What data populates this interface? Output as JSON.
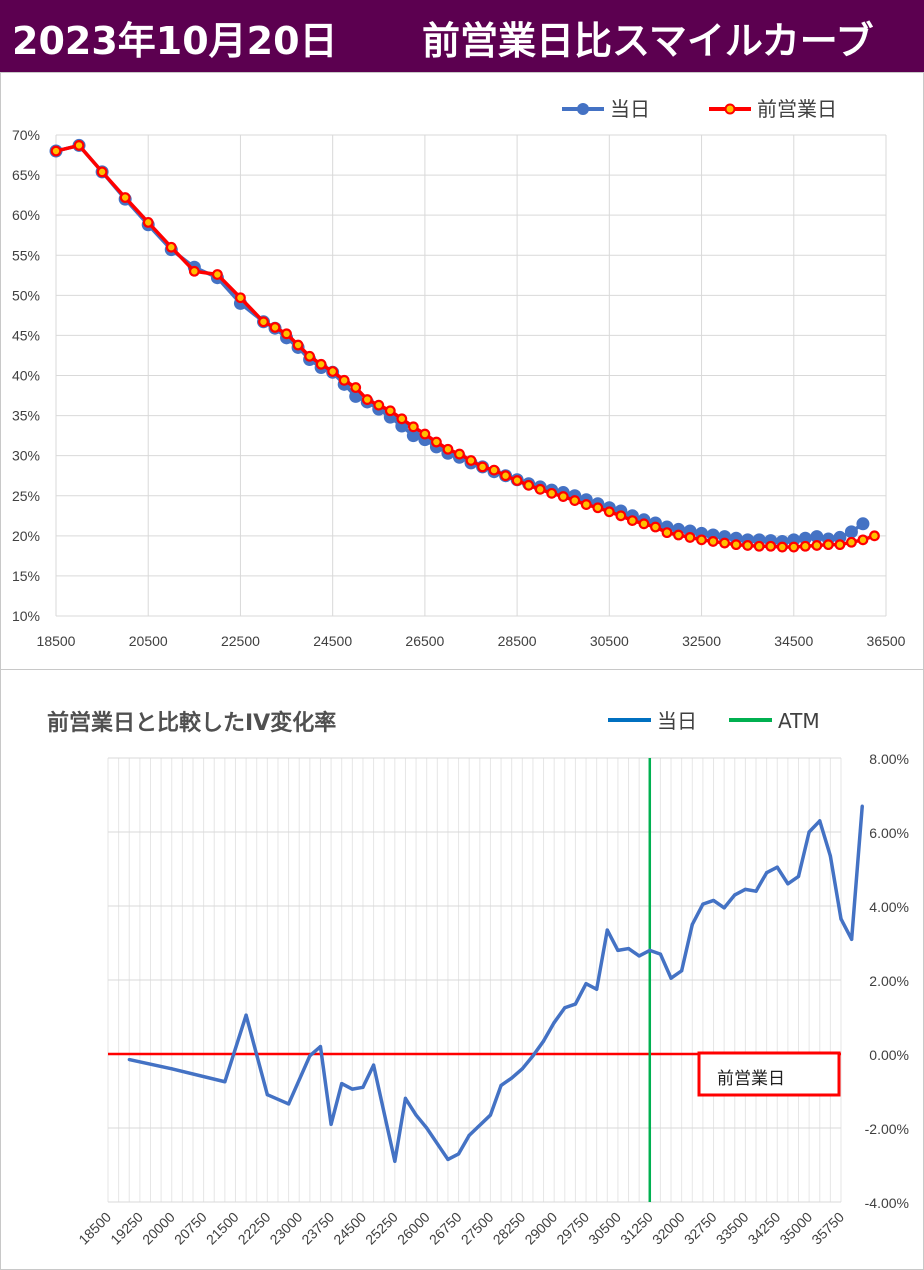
{
  "header": {
    "date": "2023年10月20日",
    "title": "前営業日比スマイルカーブ"
  },
  "colors": {
    "header_bg": "#5c0050",
    "today": "#4472c4",
    "prev": "#ff0000",
    "atm": "#00b050"
  },
  "chart_data": [
    {
      "type": "line",
      "legend": [
        "当日",
        "前営業日"
      ],
      "legend_position": "top-right",
      "x_ticks": [
        18500,
        20500,
        22500,
        24500,
        26500,
        28500,
        30500,
        32500,
        34500,
        36500
      ],
      "y_ticks": [
        "10%",
        "15%",
        "20%",
        "25%",
        "30%",
        "35%",
        "40%",
        "45%",
        "50%",
        "55%",
        "60%",
        "65%",
        "70%"
      ],
      "xlim": [
        18500,
        36500
      ],
      "ylim": [
        0.1,
        0.7
      ],
      "grid": true,
      "series": [
        {
          "name": "当日",
          "points": [
            [
              18500,
              0.68
            ],
            [
              19000,
              0.687
            ],
            [
              19500,
              0.654
            ],
            [
              20000,
              0.62
            ],
            [
              20500,
              0.588
            ],
            [
              21000,
              0.557
            ],
            [
              21500,
              0.535
            ],
            [
              22000,
              0.522
            ],
            [
              22500,
              0.49
            ],
            [
              23000,
              0.467
            ],
            [
              23250,
              0.459
            ],
            [
              23500,
              0.447
            ],
            [
              23750,
              0.435
            ],
            [
              24000,
              0.42
            ],
            [
              24250,
              0.41
            ],
            [
              24500,
              0.404
            ],
            [
              24750,
              0.389
            ],
            [
              25000,
              0.374
            ],
            [
              25250,
              0.367
            ],
            [
              25500,
              0.358
            ],
            [
              25750,
              0.348
            ],
            [
              26000,
              0.337
            ],
            [
              26250,
              0.325
            ],
            [
              26500,
              0.32
            ],
            [
              26750,
              0.311
            ],
            [
              27000,
              0.303
            ],
            [
              27250,
              0.298
            ],
            [
              27500,
              0.291
            ],
            [
              27750,
              0.286
            ],
            [
              28000,
              0.28
            ],
            [
              28250,
              0.275
            ],
            [
              28500,
              0.27
            ],
            [
              28750,
              0.265
            ],
            [
              29000,
              0.261
            ],
            [
              29250,
              0.257
            ],
            [
              29500,
              0.254
            ],
            [
              29750,
              0.25
            ],
            [
              30000,
              0.245
            ],
            [
              30250,
              0.24
            ],
            [
              30500,
              0.235
            ],
            [
              30750,
              0.231
            ],
            [
              31000,
              0.225
            ],
            [
              31250,
              0.22
            ],
            [
              31500,
              0.216
            ],
            [
              31750,
              0.211
            ],
            [
              32000,
              0.208
            ],
            [
              32250,
              0.206
            ],
            [
              32500,
              0.203
            ],
            [
              32750,
              0.201
            ],
            [
              33000,
              0.199
            ],
            [
              33250,
              0.197
            ],
            [
              33500,
              0.195
            ],
            [
              33750,
              0.195
            ],
            [
              34000,
              0.194
            ],
            [
              34250,
              0.193
            ],
            [
              34500,
              0.195
            ],
            [
              34750,
              0.197
            ],
            [
              35000,
              0.199
            ],
            [
              35250,
              0.196
            ],
            [
              35500,
              0.198
            ],
            [
              35750,
              0.205
            ],
            [
              36000,
              0.215
            ]
          ]
        },
        {
          "name": "前営業日",
          "points": [
            [
              18500,
              0.68
            ],
            [
              19000,
              0.687
            ],
            [
              19500,
              0.654
            ],
            [
              20000,
              0.622
            ],
            [
              20500,
              0.591
            ],
            [
              21000,
              0.56
            ],
            [
              21500,
              0.53
            ],
            [
              22000,
              0.526
            ],
            [
              22500,
              0.497
            ],
            [
              23000,
              0.467
            ],
            [
              23250,
              0.46
            ],
            [
              23500,
              0.452
            ],
            [
              23750,
              0.438
            ],
            [
              24000,
              0.424
            ],
            [
              24250,
              0.414
            ],
            [
              24500,
              0.405
            ],
            [
              24750,
              0.394
            ],
            [
              25000,
              0.385
            ],
            [
              25250,
              0.37
            ],
            [
              25500,
              0.363
            ],
            [
              25750,
              0.356
            ],
            [
              26000,
              0.346
            ],
            [
              26250,
              0.336
            ],
            [
              26500,
              0.327
            ],
            [
              26750,
              0.317
            ],
            [
              27000,
              0.308
            ],
            [
              27250,
              0.302
            ],
            [
              27500,
              0.294
            ],
            [
              27750,
              0.286
            ],
            [
              28000,
              0.282
            ],
            [
              28250,
              0.275
            ],
            [
              28500,
              0.269
            ],
            [
              28750,
              0.263
            ],
            [
              29000,
              0.258
            ],
            [
              29250,
              0.253
            ],
            [
              29500,
              0.249
            ],
            [
              29750,
              0.244
            ],
            [
              30000,
              0.239
            ],
            [
              30250,
              0.235
            ],
            [
              30500,
              0.23
            ],
            [
              30750,
              0.225
            ],
            [
              31000,
              0.219
            ],
            [
              31250,
              0.215
            ],
            [
              31500,
              0.211
            ],
            [
              31750,
              0.204
            ],
            [
              32000,
              0.201
            ],
            [
              32250,
              0.198
            ],
            [
              32500,
              0.195
            ],
            [
              32750,
              0.193
            ],
            [
              33000,
              0.191
            ],
            [
              33250,
              0.189
            ],
            [
              33500,
              0.188
            ],
            [
              33750,
              0.187
            ],
            [
              34000,
              0.187
            ],
            [
              34250,
              0.186
            ],
            [
              34500,
              0.186
            ],
            [
              34750,
              0.187
            ],
            [
              35000,
              0.188
            ],
            [
              35250,
              0.189
            ],
            [
              35500,
              0.189
            ],
            [
              35750,
              0.192
            ],
            [
              36000,
              0.195
            ],
            [
              36250,
              0.2
            ]
          ]
        }
      ]
    },
    {
      "type": "line",
      "title": "前営業日と比較したIV変化率",
      "legend": [
        "当日",
        "ATM"
      ],
      "legend_position": "top-right",
      "categories": [
        "18500",
        "18750",
        "19000",
        "19250",
        "19500",
        "19750",
        "20000",
        "20250",
        "20500",
        "20750",
        "21000",
        "21250",
        "21500",
        "21750",
        "22000",
        "22250",
        "22500",
        "22750",
        "23000",
        "23250",
        "23500",
        "23750",
        "24000",
        "24250",
        "24500",
        "24750",
        "25000",
        "25250",
        "25500",
        "25750",
        "26000",
        "26250",
        "26500",
        "26750",
        "27000",
        "27250",
        "27500",
        "27750",
        "28000",
        "28250",
        "28500",
        "28750",
        "29000",
        "29250",
        "29500",
        "29750",
        "30000",
        "30250",
        "30500",
        "30750",
        "31000",
        "31250",
        "31500",
        "31750",
        "32000",
        "32250",
        "32500",
        "32750",
        "33000",
        "33250",
        "33500",
        "33750",
        "34000",
        "34250",
        "34500",
        "34750",
        "35000",
        "35250",
        "35500",
        "35750"
      ],
      "tick_labels": [
        "18500",
        "19250",
        "20000",
        "20750",
        "21500",
        "22250",
        "23000",
        "23750",
        "24500",
        "25250",
        "26000",
        "26750",
        "27500",
        "28250",
        "29000",
        "29750",
        "30500",
        "31250",
        "32000",
        "32750",
        "33500",
        "34250",
        "35000",
        "35750"
      ],
      "y_ticks": [
        "-4.00%",
        "-2.00%",
        "0.00%",
        "2.00%",
        "4.00%",
        "6.00%",
        "8.00%"
      ],
      "ylim": [
        -0.04,
        0.08
      ],
      "reference_line": {
        "value": 0,
        "label": "前営業日"
      },
      "atm_strike": 31250,
      "series": [
        {
          "name": "当日",
          "points": [
            [
              19000,
              -0.0015
            ],
            [
              20000,
              -0.004
            ],
            [
              21250,
              -0.0075
            ],
            [
              21750,
              0.0105
            ],
            [
              22250,
              -0.011
            ],
            [
              22750,
              -0.0135
            ],
            [
              23250,
              -0.0005
            ],
            [
              23500,
              0.002
            ],
            [
              23750,
              -0.019
            ],
            [
              24000,
              -0.008
            ],
            [
              24250,
              -0.0095
            ],
            [
              24500,
              -0.009
            ],
            [
              24750,
              -0.003
            ],
            [
              25250,
              -0.029
            ],
            [
              25500,
              -0.012
            ],
            [
              25750,
              -0.0165
            ],
            [
              26000,
              -0.02
            ],
            [
              26500,
              -0.0285
            ],
            [
              26750,
              -0.027
            ],
            [
              27000,
              -0.022
            ],
            [
              27500,
              -0.0165
            ],
            [
              27750,
              -0.0085
            ],
            [
              28000,
              -0.0065
            ],
            [
              28250,
              -0.004
            ],
            [
              28500,
              -0.0005
            ],
            [
              28750,
              0.0035
            ],
            [
              29000,
              0.0085
            ],
            [
              29250,
              0.0125
            ],
            [
              29500,
              0.0135
            ],
            [
              29750,
              0.019
            ],
            [
              30000,
              0.0175
            ],
            [
              30250,
              0.0335
            ],
            [
              30500,
              0.028
            ],
            [
              30750,
              0.0285
            ],
            [
              31000,
              0.0265
            ],
            [
              31250,
              0.028
            ],
            [
              31500,
              0.027
            ],
            [
              31750,
              0.0205
            ],
            [
              32000,
              0.0225
            ],
            [
              32250,
              0.035
            ],
            [
              32500,
              0.0405
            ],
            [
              32750,
              0.0415
            ],
            [
              33000,
              0.0395
            ],
            [
              33250,
              0.043
            ],
            [
              33500,
              0.0445
            ],
            [
              33750,
              0.044
            ],
            [
              34000,
              0.049
            ],
            [
              34250,
              0.0505
            ],
            [
              34500,
              0.046
            ],
            [
              34750,
              0.048
            ],
            [
              35000,
              0.06
            ],
            [
              35250,
              0.063
            ],
            [
              35500,
              0.0535
            ],
            [
              35750,
              0.0365
            ],
            [
              36000,
              0.031
            ],
            [
              36250,
              0.067
            ]
          ]
        }
      ]
    }
  ]
}
